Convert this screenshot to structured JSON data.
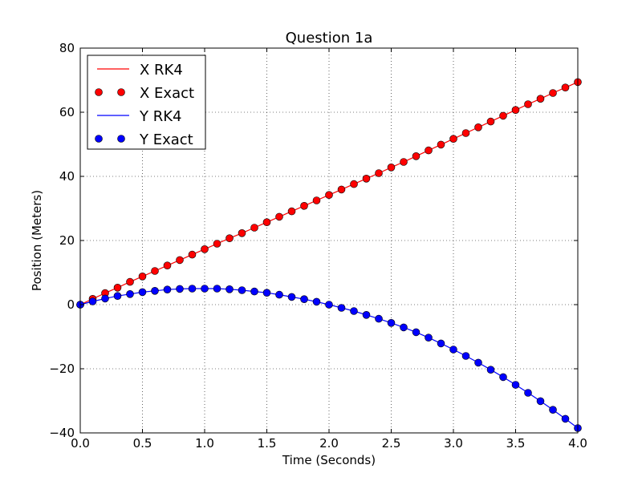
{
  "chart_data": {
    "type": "line",
    "title": "Question 1a",
    "xlabel": "Time (Seconds)",
    "ylabel": "Position (Meters)",
    "xlim": [
      0,
      4
    ],
    "ylim": [
      -40,
      80
    ],
    "grid": true,
    "legend_position": "top-left",
    "x_ticks": [
      "0.0",
      "0.5",
      "1.0",
      "1.5",
      "2.0",
      "2.5",
      "3.0",
      "3.5",
      "4.0"
    ],
    "y_ticks": [
      "−40",
      "−20",
      "0",
      "20",
      "40",
      "60",
      "80"
    ],
    "x": [
      0.0,
      0.1,
      0.2,
      0.3,
      0.4,
      0.5,
      0.6,
      0.7,
      0.8,
      0.9,
      1.0,
      1.1,
      1.2,
      1.3,
      1.4,
      1.5,
      1.6,
      1.7,
      1.8,
      1.9,
      2.0,
      2.1,
      2.2,
      2.3,
      2.4,
      2.5,
      2.6,
      2.7,
      2.8,
      2.9,
      3.0,
      3.1,
      3.2,
      3.3,
      3.4,
      3.5,
      3.6,
      3.7,
      3.8,
      3.9,
      4.0
    ],
    "series": [
      {
        "name": "X RK4",
        "style": "line",
        "color": "#ff0000",
        "values": [
          0.0,
          1.8,
          3.6,
          5.3,
          7.1,
          8.8,
          10.5,
          12.2,
          13.9,
          15.6,
          17.3,
          19.0,
          20.7,
          22.3,
          24.0,
          25.7,
          27.4,
          29.1,
          30.8,
          32.5,
          34.2,
          35.9,
          37.6,
          39.3,
          41.0,
          42.8,
          44.5,
          46.3,
          48.1,
          49.9,
          51.7,
          53.5,
          55.3,
          57.1,
          58.9,
          60.7,
          62.5,
          64.2,
          66.0,
          67.7,
          69.4
        ]
      },
      {
        "name": "X Exact",
        "style": "markers",
        "color": "#ff0000",
        "values": [
          0.0,
          1.8,
          3.6,
          5.3,
          7.1,
          8.8,
          10.5,
          12.2,
          13.9,
          15.6,
          17.3,
          19.0,
          20.7,
          22.3,
          24.0,
          25.7,
          27.4,
          29.1,
          30.8,
          32.5,
          34.2,
          35.9,
          37.6,
          39.3,
          41.0,
          42.8,
          44.5,
          46.3,
          48.1,
          49.9,
          51.7,
          53.5,
          55.3,
          57.1,
          58.9,
          60.7,
          62.5,
          64.2,
          66.0,
          67.7,
          69.4
        ]
      },
      {
        "name": "Y RK4",
        "style": "line",
        "color": "#0000ff",
        "values": [
          0.0,
          1.0,
          1.9,
          2.7,
          3.3,
          3.9,
          4.3,
          4.7,
          4.9,
          5.0,
          5.0,
          5.0,
          4.8,
          4.5,
          4.1,
          3.7,
          3.1,
          2.4,
          1.7,
          0.9,
          0.0,
          -1.0,
          -2.0,
          -3.2,
          -4.4,
          -5.7,
          -7.1,
          -8.6,
          -10.3,
          -12.1,
          -14.0,
          -16.0,
          -18.1,
          -20.3,
          -22.6,
          -25.0,
          -27.5,
          -30.1,
          -32.8,
          -35.6,
          -38.5
        ]
      },
      {
        "name": "Y Exact",
        "style": "markers",
        "color": "#0000ff",
        "values": [
          0.0,
          1.0,
          1.9,
          2.7,
          3.3,
          3.9,
          4.3,
          4.7,
          4.9,
          5.0,
          5.0,
          5.0,
          4.8,
          4.5,
          4.1,
          3.7,
          3.1,
          2.4,
          1.7,
          0.9,
          0.0,
          -1.0,
          -2.0,
          -3.2,
          -4.4,
          -5.7,
          -7.1,
          -8.6,
          -10.3,
          -12.1,
          -14.0,
          -16.0,
          -18.1,
          -20.3,
          -22.6,
          -25.0,
          -27.5,
          -30.1,
          -32.8,
          -35.6,
          -38.5
        ]
      }
    ]
  }
}
